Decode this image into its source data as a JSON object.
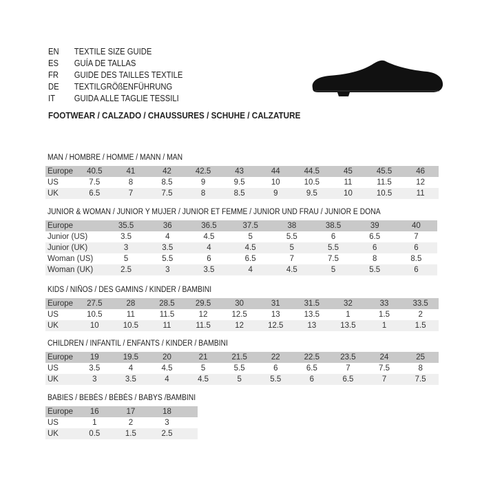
{
  "languages": [
    {
      "code": "EN",
      "title": "TEXTILE SIZE GUIDE"
    },
    {
      "code": "ES",
      "title": "GUÍA DE TALLAS"
    },
    {
      "code": "FR",
      "title": "GUIDE DES TAILLES TEXTILE"
    },
    {
      "code": "DE",
      "title": "TEXTILGRÖßENFÜHRUNG"
    },
    {
      "code": "IT",
      "title": "GUIDA ALLE TAGLIE TESSILI"
    }
  ],
  "footwear_title": "FOOTWEAR / CALZADO / CHAUSSURES / SCHUHE / CALZATURE",
  "shoe_icon": "shoe-icon",
  "colors": {
    "header_row": "#c9c9c9",
    "alt_row": "#efefef"
  },
  "sections": [
    {
      "title": "MAN / HOMBRE / HOMME / MANN / MAN",
      "rows": [
        {
          "label": "Europe",
          "values": [
            "40.5",
            "41",
            "42",
            "42.5",
            "43",
            "44",
            "44.5",
            "45",
            "45.5",
            "46"
          ]
        },
        {
          "label": "US",
          "values": [
            "7.5",
            "8",
            "8.5",
            "9",
            "9.5",
            "10",
            "10.5",
            "11",
            "11.5",
            "12"
          ]
        },
        {
          "label": "UK",
          "values": [
            "6.5",
            "7",
            "7.5",
            "8",
            "8.5",
            "9",
            "9.5",
            "10",
            "10.5",
            "11"
          ]
        }
      ]
    },
    {
      "title": "JUNIOR & WOMAN / JUNIOR Y MUJER / JUNIOR ET FEMME / JUNIOR UND FRAU / JUNIOR E DONA",
      "rows": [
        {
          "label": "Europe",
          "values": [
            "35.5",
            "36",
            "36.5",
            "37.5",
            "38",
            "38.5",
            "39",
            "40"
          ]
        },
        {
          "label": "Junior (US)",
          "values": [
            "3.5",
            "4",
            "4.5",
            "5",
            "5.5",
            "6",
            "6.5",
            "7"
          ]
        },
        {
          "label": "Junior (UK)",
          "values": [
            "3",
            "3.5",
            "4",
            "4.5",
            "5",
            "5.5",
            "6",
            "6"
          ]
        },
        {
          "label": "Woman (US)",
          "values": [
            "5",
            "5.5",
            "6",
            "6.5",
            "7",
            "7.5",
            "8",
            "8.5"
          ]
        },
        {
          "label": "Woman (UK)",
          "values": [
            "2.5",
            "3",
            "3.5",
            "4",
            "4.5",
            "5",
            "5.5",
            "6"
          ]
        }
      ]
    },
    {
      "title": "KIDS / NIÑOS / DES GAMINS / KINDER / BAMBINI",
      "rows": [
        {
          "label": "Europe",
          "values": [
            "27.5",
            "28",
            "28.5",
            "29.5",
            "30",
            "31",
            "31.5",
            "32",
            "33",
            "33.5"
          ]
        },
        {
          "label": "US",
          "values": [
            "10.5",
            "11",
            "11.5",
            "12",
            "12.5",
            "13",
            "13.5",
            "1",
            "1.5",
            "2"
          ]
        },
        {
          "label": "UK",
          "values": [
            "10",
            "10.5",
            "11",
            "11.5",
            "12",
            "12.5",
            "13",
            "13.5",
            "1",
            "1.5"
          ]
        }
      ]
    },
    {
      "title": "CHILDREN / INFANTIL / ENFANTS / KINDER / BAMBINI",
      "rows": [
        {
          "label": "Europe",
          "values": [
            "19",
            "19.5",
            "20",
            "21",
            "21.5",
            "22",
            "22.5",
            "23.5",
            "24",
            "25"
          ]
        },
        {
          "label": "US",
          "values": [
            "3.5",
            "4",
            "4.5",
            "5",
            "5.5",
            "6",
            "6.5",
            "7",
            "7.5",
            "8"
          ]
        },
        {
          "label": "UK",
          "values": [
            "3",
            "3.5",
            "4",
            "4.5",
            "5",
            "5.5",
            "6",
            "6.5",
            "7",
            "7.5"
          ]
        }
      ]
    },
    {
      "title": "BABIES  / BEBÉS / BÉBÉS / BABYS /BAMBINI",
      "rows": [
        {
          "label": "Europe",
          "values": [
            "16",
            "17",
            "18"
          ]
        },
        {
          "label": "US",
          "values": [
            "1",
            "2",
            "3"
          ]
        },
        {
          "label": "UK",
          "values": [
            "0.5",
            "1.5",
            "2.5"
          ]
        }
      ]
    }
  ]
}
